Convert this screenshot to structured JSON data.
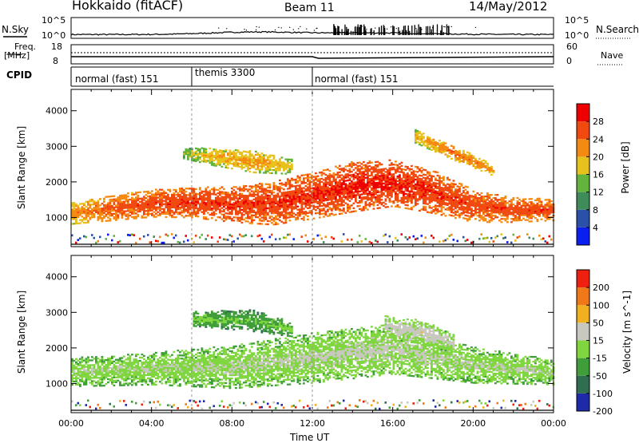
{
  "header": {
    "station": "Hokkaido (fitACF)",
    "beam": "Beam 11",
    "date": "14/May/2012"
  },
  "noise_panel": {
    "left_label": "N.Sky",
    "right_label": "N.Search",
    "left_ticks": [
      "10^5",
      "10^0"
    ],
    "right_ticks": [
      "10^5",
      "10^0"
    ]
  },
  "freq_panel": {
    "left_label_1": "Freq.",
    "left_label_2": "[MHz]",
    "right_label": "Nave",
    "left_ticks": [
      "18",
      "8"
    ],
    "right_ticks": [
      "60",
      "0"
    ]
  },
  "cpid": {
    "label": "CPID",
    "segments": [
      {
        "name": "normal (fast) 151",
        "start_hour": 0,
        "end_hour": 6
      },
      {
        "name": "themis 3300",
        "start_hour": 6,
        "end_hour": 12
      },
      {
        "name": "normal (fast) 151",
        "start_hour": 12,
        "end_hour": 24
      }
    ]
  },
  "power_panel": {
    "ylabel": "Slant Range [km]",
    "yticks": [
      "4000",
      "3000",
      "2000",
      "1000"
    ],
    "colorbar_label": "Power [dB]",
    "colorbar_ticks": [
      "28",
      "24",
      "20",
      "16",
      "12",
      "8",
      "4"
    ],
    "colors": [
      "#0a1ef0",
      "#2b50a8",
      "#3f8c5a",
      "#62b43c",
      "#e8c21c",
      "#f58a12",
      "#f04a10",
      "#ee0000"
    ]
  },
  "velocity_panel": {
    "ylabel": "Slant Range [km]",
    "yticks": [
      "4000",
      "3000",
      "2000",
      "1000"
    ],
    "colorbar_label": "Velocity [m s^-1]",
    "colorbar_ticks": [
      "200",
      "100",
      "50",
      "15",
      "-15",
      "-50",
      "-100",
      "-200"
    ],
    "colors": [
      "#1e2aa8",
      "#2f6e50",
      "#3f9e3a",
      "#7fd63e",
      "#c8c8c0",
      "#f0b020",
      "#f07818",
      "#ee2010"
    ]
  },
  "x_axis": {
    "label": "Time UT",
    "ticks": [
      "00:00",
      "04:00",
      "08:00",
      "12:00",
      "16:00",
      "20:00",
      "00:00"
    ]
  },
  "chart_data": [
    {
      "type": "heatmap",
      "title": "Hokkaido (fitACF) Beam 11 14/May/2012",
      "quantity": "Power",
      "unit": "dB",
      "xlabel": "Time UT",
      "ylabel": "Slant Range [km]",
      "xlim_hours": [
        0,
        24
      ],
      "ylim_km": [
        180,
        4600
      ],
      "colorbar_range": [
        0,
        32
      ],
      "bands": [
        {
          "t": [
            0.0,
            2.0,
            4.0,
            6.0,
            8.0,
            10.0,
            12.0,
            14.0,
            16.0,
            18.0,
            20.0,
            22.0,
            24.0
          ],
          "center_km": [
            1100,
            1250,
            1380,
            1400,
            1350,
            1380,
            1600,
            1850,
            1950,
            1700,
            1300,
            1200,
            1200
          ],
          "width_km": [
            300,
            350,
            380,
            420,
            500,
            600,
            650,
            700,
            650,
            600,
            450,
            350,
            300
          ],
          "value_db": [
            22,
            26,
            27,
            28,
            28,
            28,
            28,
            29,
            29,
            28,
            27,
            27,
            27
          ]
        },
        {
          "t": [
            5.5,
            7.0,
            9.0,
            11.0
          ],
          "center_km": [
            2800,
            2700,
            2550,
            2400
          ],
          "width_km": [
            150,
            250,
            300,
            200
          ],
          "value_db": [
            16,
            20,
            22,
            18
          ]
        },
        {
          "t": [
            17.0,
            19.0,
            21.0
          ],
          "center_km": [
            3300,
            2800,
            2300
          ],
          "width_km": [
            200,
            200,
            150
          ],
          "value_db": [
            20,
            24,
            22
          ]
        }
      ]
    },
    {
      "type": "heatmap",
      "quantity": "Velocity",
      "unit": "m s^-1",
      "xlabel": "Time UT",
      "ylabel": "Slant Range [km]",
      "xlim_hours": [
        0,
        24
      ],
      "ylim_km": [
        180,
        4600
      ],
      "colorbar_range": [
        -250,
        250
      ],
      "bands": [
        {
          "t": [
            0.0,
            4.0,
            8.0,
            12.0,
            16.0,
            20.0,
            24.0
          ],
          "center_km": [
            1300,
            1400,
            1450,
            1700,
            1950,
            1500,
            1300
          ],
          "width_km": [
            400,
            450,
            600,
            700,
            700,
            500,
            350
          ],
          "value_ms": [
            -5,
            0,
            5,
            10,
            20,
            5,
            0
          ]
        },
        {
          "t": [
            6.0,
            9.0,
            11.0
          ],
          "center_km": [
            2800,
            2750,
            2500
          ],
          "width_km": [
            200,
            300,
            200
          ],
          "value_ms": [
            -40,
            -60,
            -30
          ]
        },
        {
          "t": [
            15.5,
            17.5,
            19.0
          ],
          "center_km": [
            2600,
            2400,
            2100
          ],
          "width_km": [
            300,
            350,
            250
          ],
          "value_ms": [
            35,
            40,
            30
          ]
        }
      ]
    }
  ]
}
